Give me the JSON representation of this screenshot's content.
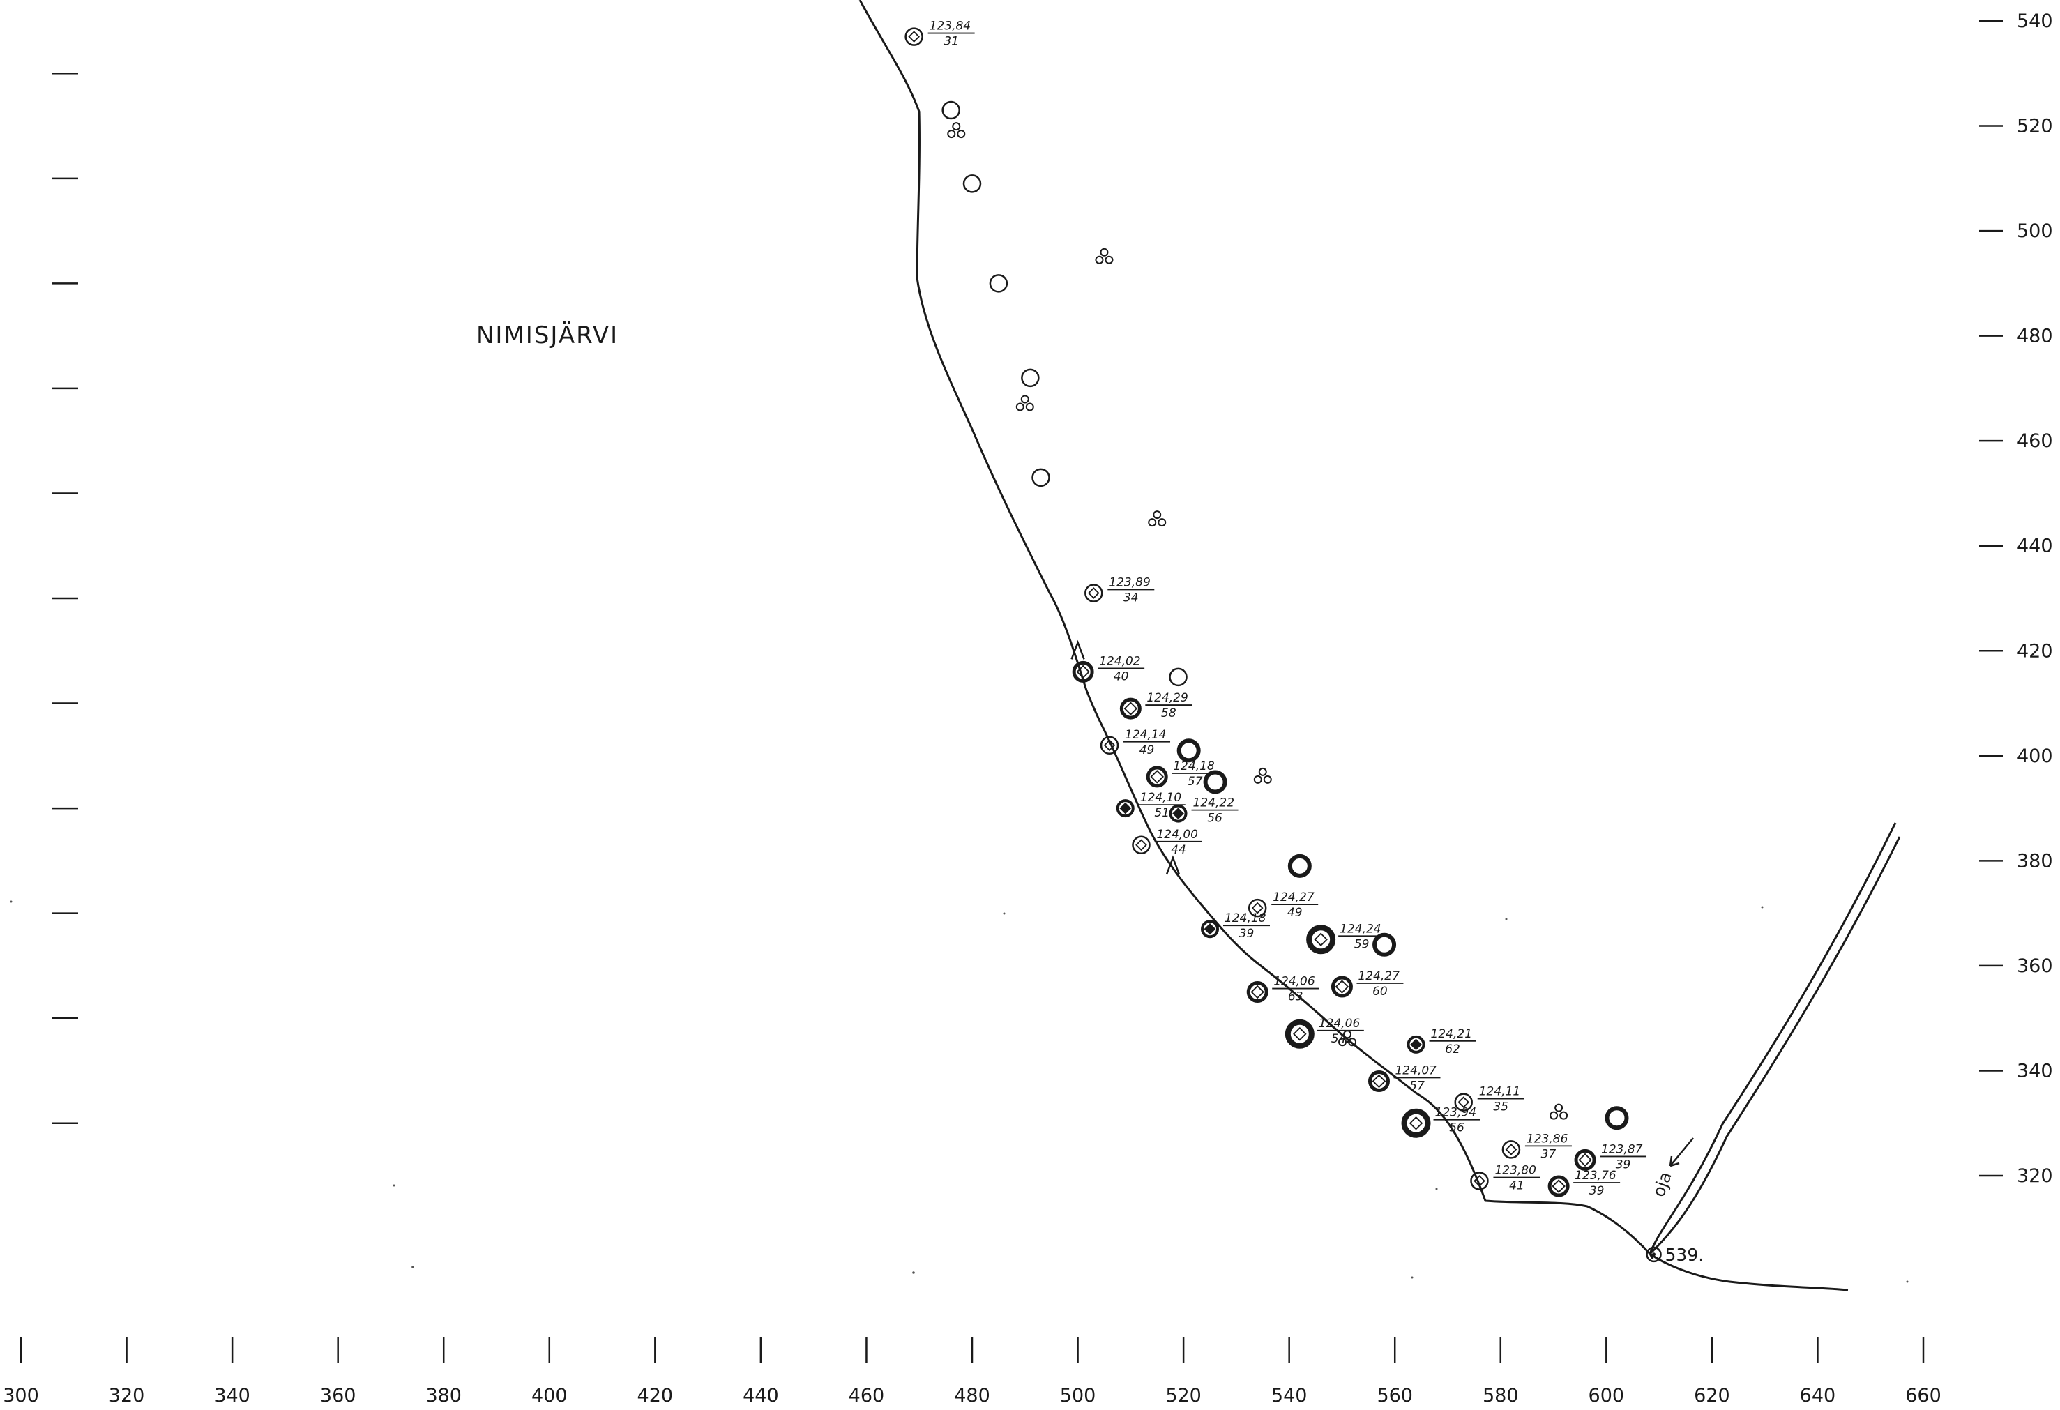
{
  "map": {
    "lake_name": "NIMISJÄRVI",
    "river_label": "oja",
    "point_label": "539."
  },
  "axes": {
    "x_ticks": [
      "300",
      "320",
      "340",
      "360",
      "380",
      "400",
      "420",
      "440",
      "460",
      "480",
      "500",
      "520",
      "540",
      "560",
      "580",
      "600",
      "620",
      "640",
      "660"
    ],
    "y_ticks": [
      "540",
      "520",
      "500",
      "480",
      "460",
      "440",
      "420",
      "400",
      "380",
      "360",
      "340",
      "320"
    ]
  },
  "wells": [
    {
      "x": 469,
      "y": 537,
      "type": "sq",
      "elev": "123,84",
      "depth": "31"
    },
    {
      "x": 503,
      "y": 431,
      "type": "sq",
      "elev": "123,89",
      "depth": "34"
    },
    {
      "x": 501,
      "y": 416,
      "type": "sq-bold",
      "elev": "124,02",
      "depth": "40"
    },
    {
      "x": 510,
      "y": 409,
      "type": "sq-bold",
      "elev": "124,29",
      "depth": "58"
    },
    {
      "x": 506,
      "y": 402,
      "type": "sq",
      "elev": "124,14",
      "depth": "49"
    },
    {
      "x": 515,
      "y": 396,
      "type": "sq-bold",
      "elev": "124,18",
      "depth": "57"
    },
    {
      "x": 509,
      "y": 390,
      "type": "sq-dark",
      "elev": "124,10",
      "depth": "51"
    },
    {
      "x": 519,
      "y": 389,
      "type": "sq-dark",
      "elev": "124,22",
      "depth": "56"
    },
    {
      "x": 512,
      "y": 383,
      "type": "sq",
      "elev": "124,00",
      "depth": "44"
    },
    {
      "x": 534,
      "y": 371,
      "type": "sq",
      "elev": "124,27",
      "depth": "49"
    },
    {
      "x": 525,
      "y": 367,
      "type": "sq-dark",
      "elev": "124,18",
      "depth": "39"
    },
    {
      "x": 546,
      "y": 365,
      "type": "sq-heavy",
      "elev": "124,24",
      "depth": "59"
    },
    {
      "x": 550,
      "y": 356,
      "type": "sq-bold",
      "elev": "124,27",
      "depth": "60"
    },
    {
      "x": 534,
      "y": 355,
      "type": "sq-bold",
      "elev": "124,06",
      "depth": "63"
    },
    {
      "x": 542,
      "y": 347,
      "type": "sq-heavy",
      "elev": "124,06",
      "depth": "54."
    },
    {
      "x": 564,
      "y": 345,
      "type": "sq-dark",
      "elev": "124,21",
      "depth": "62"
    },
    {
      "x": 557,
      "y": 338,
      "type": "sq-bold",
      "elev": "124,07",
      "depth": "57"
    },
    {
      "x": 573,
      "y": 334,
      "type": "sq",
      "elev": "124,11",
      "depth": "35"
    },
    {
      "x": 564,
      "y": 330,
      "type": "sq-heavy",
      "elev": "123,94",
      "depth": "56"
    },
    {
      "x": 582,
      "y": 325,
      "type": "sq",
      "elev": "123,86",
      "depth": "37"
    },
    {
      "x": 596,
      "y": 323,
      "type": "sq-bold",
      "elev": "123,87",
      "depth": "39"
    },
    {
      "x": 576,
      "y": 319,
      "type": "sq",
      "elev": "123,80",
      "depth": "41"
    },
    {
      "x": 591,
      "y": 318,
      "type": "sq-bold",
      "elev": "123,76",
      "depth": "39"
    },
    {
      "x": 609,
      "y": 305,
      "type": "dot",
      "elev": "",
      "depth": ""
    }
  ],
  "rings": [
    {
      "x": 476,
      "y": 523,
      "type": "open"
    },
    {
      "x": 480,
      "y": 509,
      "type": "open"
    },
    {
      "x": 485,
      "y": 490,
      "type": "open"
    },
    {
      "x": 491,
      "y": 472,
      "type": "open"
    },
    {
      "x": 493,
      "y": 453,
      "type": "open"
    },
    {
      "x": 519,
      "y": 415,
      "type": "open"
    },
    {
      "x": 521,
      "y": 401,
      "type": "thick"
    },
    {
      "x": 526,
      "y": 395,
      "type": "thick"
    },
    {
      "x": 542,
      "y": 379,
      "type": "thick"
    },
    {
      "x": 558,
      "y": 364,
      "type": "thick"
    },
    {
      "x": 602,
      "y": 331,
      "type": "thick"
    }
  ],
  "clusters": [
    {
      "x": 477,
      "y": 519
    },
    {
      "x": 505,
      "y": 495
    },
    {
      "x": 490,
      "y": 467
    },
    {
      "x": 515,
      "y": 445
    },
    {
      "x": 535,
      "y": 396
    },
    {
      "x": 551,
      "y": 346
    },
    {
      "x": 591,
      "y": 332
    }
  ],
  "carets": [
    {
      "x": 500,
      "y": 420
    },
    {
      "x": 518,
      "y": 379
    }
  ]
}
